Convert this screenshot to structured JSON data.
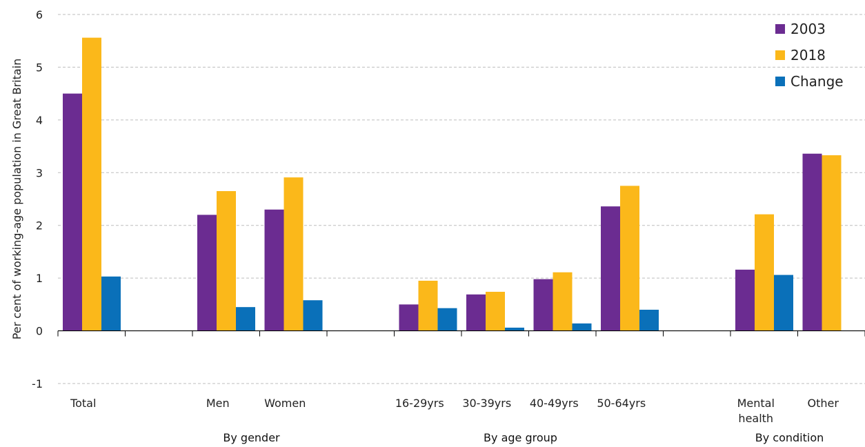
{
  "chart_data": {
    "type": "bar",
    "ylabel": "Per cent of working-age population in Great Britain",
    "ylim": [
      -1,
      6
    ],
    "yticks": [
      -1,
      0,
      1,
      2,
      3,
      4,
      5,
      6
    ],
    "grid": true,
    "legend_position": "top-right",
    "slots": [
      {
        "label": [
          "Total"
        ]
      },
      {
        "label": []
      },
      {
        "label": [
          "Men"
        ]
      },
      {
        "label": [
          "Women"
        ]
      },
      {
        "label": []
      },
      {
        "label": [
          "16-29yrs"
        ]
      },
      {
        "label": [
          "30-39yrs"
        ]
      },
      {
        "label": [
          "40-49yrs"
        ]
      },
      {
        "label": [
          "50-64yrs"
        ]
      },
      {
        "label": []
      },
      {
        "label": [
          "Mental",
          "health"
        ]
      },
      {
        "label": [
          "Other"
        ]
      }
    ],
    "series": [
      {
        "name": "2003",
        "color": "#6b2c91",
        "values": [
          4.5,
          null,
          2.2,
          2.3,
          null,
          0.5,
          0.69,
          0.98,
          2.36,
          null,
          1.16,
          3.36
        ]
      },
      {
        "name": "2018",
        "color": "#fbb81a",
        "values": [
          5.56,
          null,
          2.65,
          2.91,
          null,
          0.95,
          0.74,
          1.11,
          2.75,
          null,
          2.21,
          3.33
        ]
      },
      {
        "name": "Change",
        "color": "#0a70b9",
        "values": [
          1.03,
          null,
          0.45,
          0.58,
          null,
          0.43,
          0.06,
          0.14,
          0.4,
          null,
          1.06,
          null
        ]
      }
    ],
    "groups": [
      {
        "label": "By gender",
        "from": 2,
        "to": 3
      },
      {
        "label": "By age group",
        "from": 5,
        "to": 8
      },
      {
        "label": "By condition",
        "from": 10,
        "to": 11
      }
    ]
  }
}
